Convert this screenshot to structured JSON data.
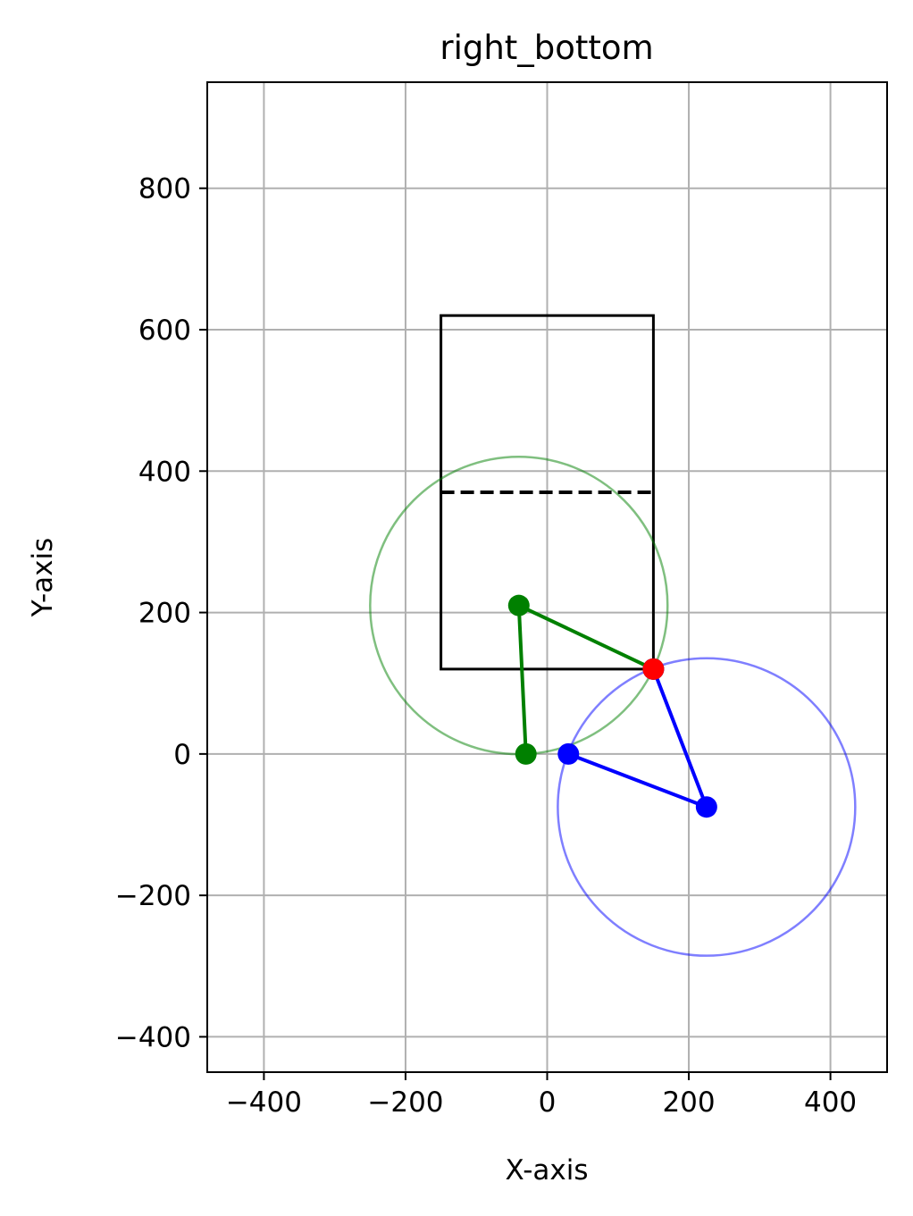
{
  "chart_data": {
    "type": "scatter",
    "title": "right_bottom",
    "xlabel": "X-axis",
    "ylabel": "Y-axis",
    "xlim": [
      -480,
      480
    ],
    "ylim": [
      -450,
      950
    ],
    "grid": true,
    "xticks": [
      -400,
      -200,
      0,
      200,
      400
    ],
    "yticks": [
      -400,
      -200,
      0,
      200,
      400,
      600,
      800
    ],
    "xtick_labels": [
      "−400",
      "−200",
      "0",
      "200",
      "400"
    ],
    "ytick_labels": [
      "−400",
      "−200",
      "0",
      "200",
      "400",
      "600",
      "800"
    ],
    "rectangle": {
      "x0": -150,
      "x1": 150,
      "y0": 120,
      "y1": 620,
      "color": "#000000"
    },
    "dashed_line": {
      "x": [
        -150,
        150
      ],
      "y": [
        370,
        370
      ],
      "color": "#000000"
    },
    "circles": [
      {
        "name": "green-reach-circle",
        "cx": -40,
        "cy": 210,
        "r": 210,
        "color": "#008000",
        "alpha": 0.5
      },
      {
        "name": "blue-reach-circle",
        "cx": 225,
        "cy": -75,
        "r": 210,
        "color": "#0000ff",
        "alpha": 0.5
      }
    ],
    "series": [
      {
        "color": "#008000",
        "x": [
          -30,
          -40,
          150
        ],
        "y": [
          0,
          210,
          120
        ]
      },
      {
        "color": "#0000ff",
        "x": [
          30,
          225,
          150
        ],
        "y": [
          0,
          -75,
          120
        ]
      }
    ],
    "target_point": {
      "x": 150,
      "y": 120,
      "color": "#ff0000"
    }
  }
}
